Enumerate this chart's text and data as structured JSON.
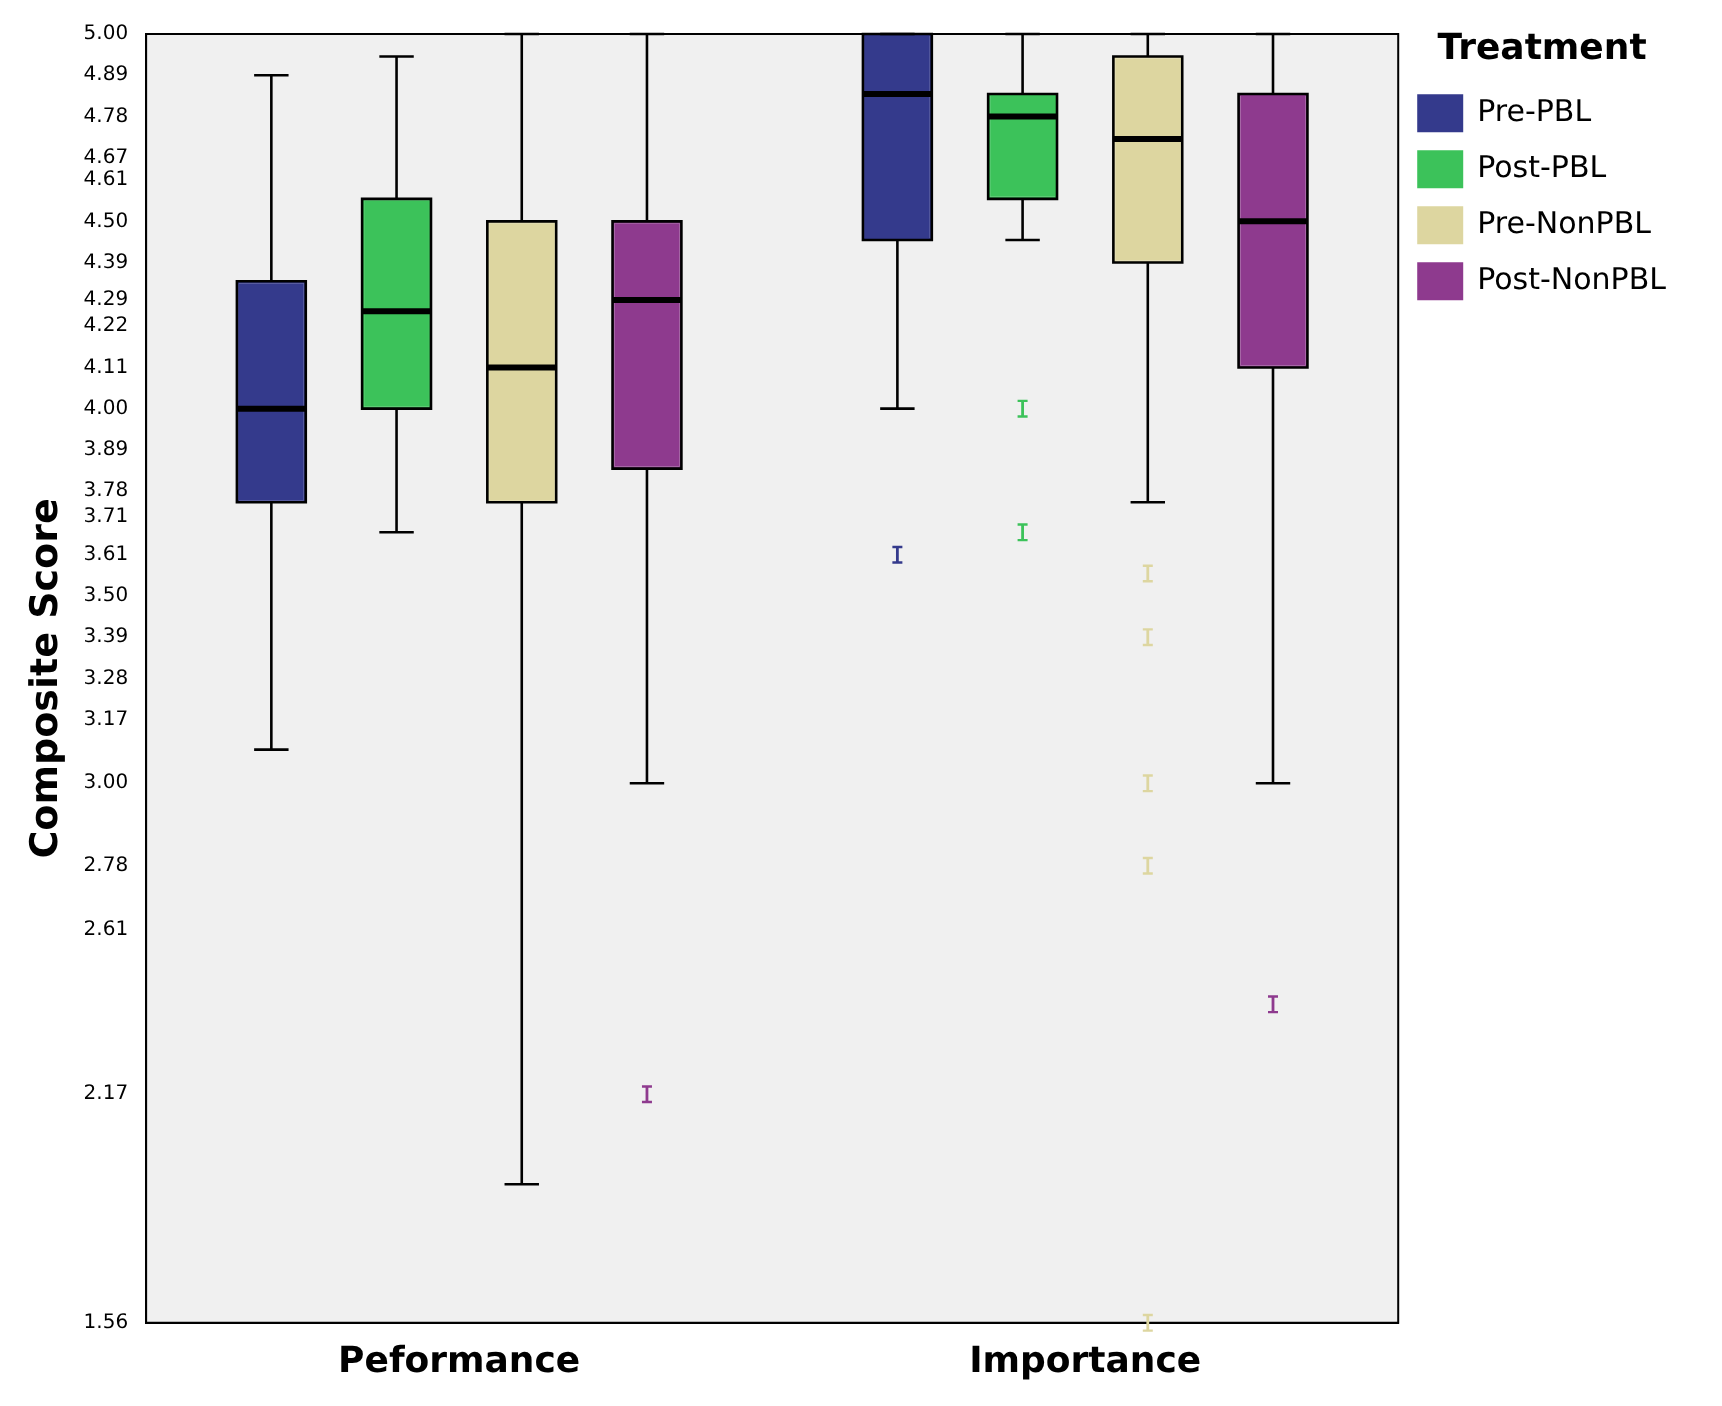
{
  "chart_data": {
    "type": "box",
    "ylabel": "Composite Score",
    "legend_title": "Treatment",
    "legend": "top right",
    "grid": false,
    "categories": [
      "Peformance",
      "Importance"
    ],
    "ylim": [
      1.56,
      5.0
    ],
    "yticks": [
      1.56,
      2.17,
      2.61,
      2.78,
      {
        "value": 3,
        "label": "3.00"
      },
      3.17,
      3.28,
      3.39,
      {
        "value": 3.5,
        "label": "3.50"
      },
      3.61,
      3.71,
      3.78,
      3.89,
      {
        "value": 4,
        "label": "4.00"
      },
      4.11,
      4.22,
      4.29,
      4.39,
      {
        "value": 4.5,
        "label": "4.50"
      },
      4.61,
      4.67,
      4.78,
      4.89,
      {
        "value": 5,
        "label": "5.00"
      }
    ],
    "series": [
      {
        "name": "Pre-PBL",
        "color": "#343a8c",
        "boxes": [
          {
            "low": 3.09,
            "q1": 3.75,
            "median": 4.0,
            "q3": 4.34,
            "high": 4.89
          },
          {
            "low": 4.0,
            "q1": 4.45,
            "median": 4.84,
            "q3": 5.0,
            "high": 5.0,
            "outliers": [
              3.61
            ]
          }
        ]
      },
      {
        "name": "Post-PBL",
        "color": "#3cc25a",
        "boxes": [
          {
            "low": 3.67,
            "q1": 4.0,
            "median": 4.26,
            "q3": 4.56,
            "high": 4.94
          },
          {
            "low": 4.45,
            "q1": 4.56,
            "median": 4.78,
            "q3": 4.84,
            "high": 5.0,
            "outliers": [
              4.0,
              3.67
            ]
          }
        ]
      },
      {
        "name": "Pre-NonPBL",
        "color": "#ddd6a0",
        "boxes": [
          {
            "low": 1.93,
            "q1": 3.75,
            "median": 4.11,
            "q3": 4.5,
            "high": 5.0
          },
          {
            "low": 3.75,
            "q1": 4.39,
            "median": 4.72,
            "q3": 4.94,
            "high": 5.0,
            "outliers": [
              3.56,
              3.39,
              3.0,
              2.78,
              1.56
            ]
          }
        ]
      },
      {
        "name": "Post-NonPBL",
        "color": "#8e3a8e",
        "boxes": [
          {
            "low": 3.0,
            "q1": 3.84,
            "median": 4.29,
            "q3": 4.5,
            "high": 5.0,
            "outliers": [
              2.17
            ]
          },
          {
            "low": 3.0,
            "q1": 4.11,
            "median": 4.5,
            "q3": 4.84,
            "high": 5.0,
            "outliers": [
              2.41
            ]
          }
        ]
      }
    ]
  }
}
